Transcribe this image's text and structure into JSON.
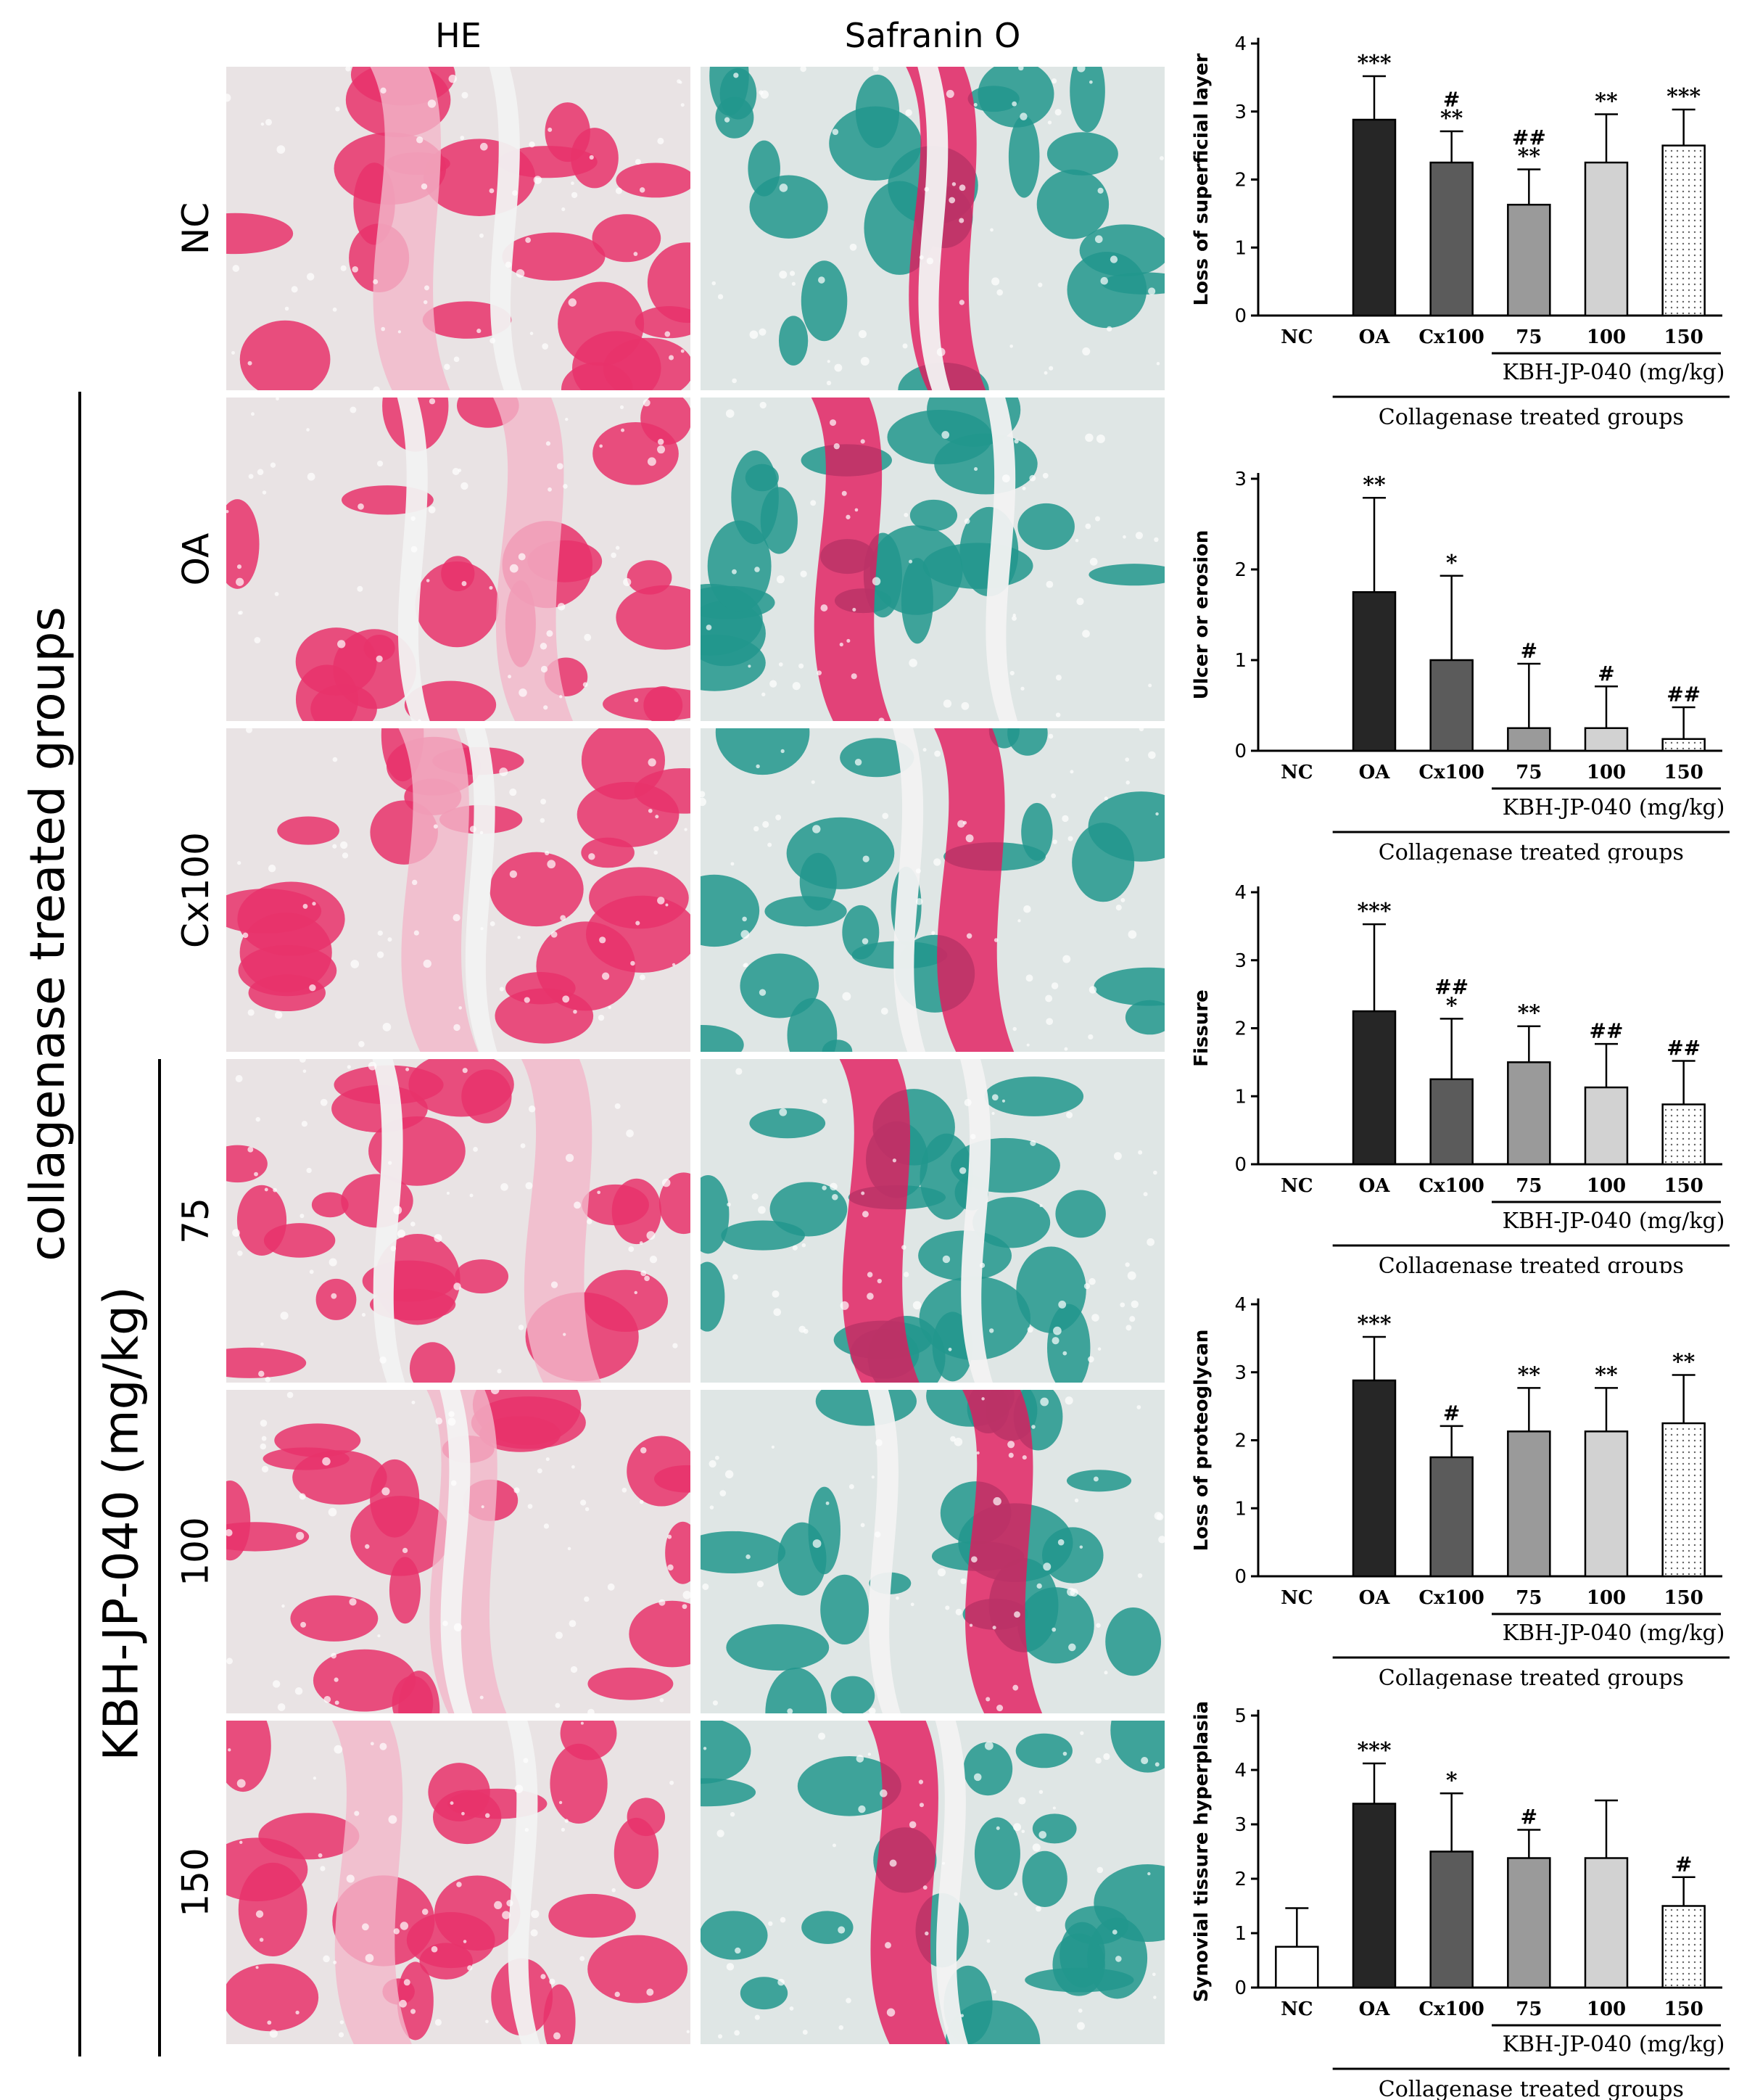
{
  "columns": [
    "HE",
    "Safranin O"
  ],
  "rows": [
    "NC",
    "OA",
    "Cx100",
    "75",
    "100",
    "150"
  ],
  "group_label": "collagenase treated groups",
  "dose_label": "KBH-JP-040 (mg/kg)",
  "colors": {
    "he_pink": "#e8336b",
    "he_light": "#f3b7c9",
    "he_bg": "#e9e3e4",
    "saf_green": "#22978d",
    "saf_red": "#e2195c",
    "saf_bg": "#dfe6e5",
    "bar_fills": [
      "#ffffff",
      "#262626",
      "#5b5b5b",
      "#9a9a9a",
      "#d2d2d2",
      "#ffffff"
    ]
  },
  "chart_data": [
    {
      "type": "bar",
      "ylabel": "Loss of superficial layer",
      "categories": [
        "NC",
        "OA",
        "Cx100",
        "75",
        "100",
        "150"
      ],
      "values": [
        0,
        2.88,
        2.25,
        1.63,
        2.25,
        2.5
      ],
      "errors": [
        0,
        0.64,
        0.46,
        0.52,
        0.71,
        0.53
      ],
      "sig_star": [
        "",
        "***",
        "**",
        "**",
        "**",
        "***"
      ],
      "sig_hash": [
        "",
        "",
        "#",
        "##",
        "",
        ""
      ],
      "ylim": [
        0,
        4
      ],
      "yticks": [
        0,
        1,
        2,
        3,
        4
      ],
      "bracket_label": "KBH-JP-040 (mg/kg)",
      "group_label": "Collagenase treated groups"
    },
    {
      "type": "bar",
      "ylabel": "Ulcer or erosion",
      "categories": [
        "NC",
        "OA",
        "Cx100",
        "75",
        "100",
        "150"
      ],
      "values": [
        0,
        1.75,
        1.0,
        0.25,
        0.25,
        0.13
      ],
      "errors": [
        0,
        1.04,
        0.93,
        0.71,
        0.46,
        0.35
      ],
      "sig_star": [
        "",
        "**",
        "*",
        "",
        "",
        ""
      ],
      "sig_hash": [
        "",
        "",
        "",
        "#",
        "#",
        "##"
      ],
      "ylim": [
        0,
        3
      ],
      "yticks": [
        0,
        1,
        2,
        3
      ],
      "bracket_label": "KBH-JP-040 (mg/kg)",
      "group_label": "Collagenase treated groups"
    },
    {
      "type": "bar",
      "ylabel": "Fissure",
      "categories": [
        "NC",
        "OA",
        "Cx100",
        "75",
        "100",
        "150"
      ],
      "values": [
        0,
        2.25,
        1.25,
        1.5,
        1.13,
        0.88
      ],
      "errors": [
        0,
        1.28,
        0.89,
        0.53,
        0.64,
        0.64
      ],
      "sig_star": [
        "",
        "***",
        "*",
        "**",
        "",
        ""
      ],
      "sig_hash": [
        "",
        "",
        "##",
        "",
        "##",
        "##"
      ],
      "ylim": [
        0,
        4
      ],
      "yticks": [
        0,
        1,
        2,
        3,
        4
      ],
      "bracket_label": "KBH-JP-040 (mg/kg)",
      "group_label": "Collagenase treated groups"
    },
    {
      "type": "bar",
      "ylabel": "Loss of proteoglycan",
      "categories": [
        "NC",
        "OA",
        "Cx100",
        "75",
        "100",
        "150"
      ],
      "values": [
        0,
        2.88,
        1.75,
        2.13,
        2.13,
        2.25
      ],
      "errors": [
        0,
        0.64,
        0.46,
        0.64,
        0.64,
        0.71
      ],
      "sig_star": [
        "",
        "***",
        "",
        "**",
        "**",
        "**"
      ],
      "sig_hash": [
        "",
        "",
        "#",
        "",
        "",
        ""
      ],
      "ylim": [
        0,
        4
      ],
      "yticks": [
        0,
        1,
        2,
        3,
        4
      ],
      "bracket_label": "KBH-JP-040 (mg/kg)",
      "group_label": "Collagenase treated groups"
    },
    {
      "type": "bar",
      "ylabel": "Synovial tissure hyperplasia",
      "categories": [
        "NC",
        "OA",
        "Cx100",
        "75",
        "100",
        "150"
      ],
      "values": [
        0.75,
        3.38,
        2.5,
        2.38,
        2.38,
        1.5
      ],
      "errors": [
        0.71,
        0.74,
        1.07,
        0.52,
        1.06,
        0.53
      ],
      "sig_star": [
        "",
        "***",
        "*",
        "",
        "",
        ""
      ],
      "sig_hash": [
        "",
        "",
        "",
        "#",
        "",
        "#"
      ],
      "ylim": [
        0,
        5
      ],
      "yticks": [
        0,
        1,
        2,
        3,
        4,
        5
      ],
      "bracket_label": "KBH-JP-040 (mg/kg)",
      "group_label": "Collagenase treated groups"
    }
  ]
}
